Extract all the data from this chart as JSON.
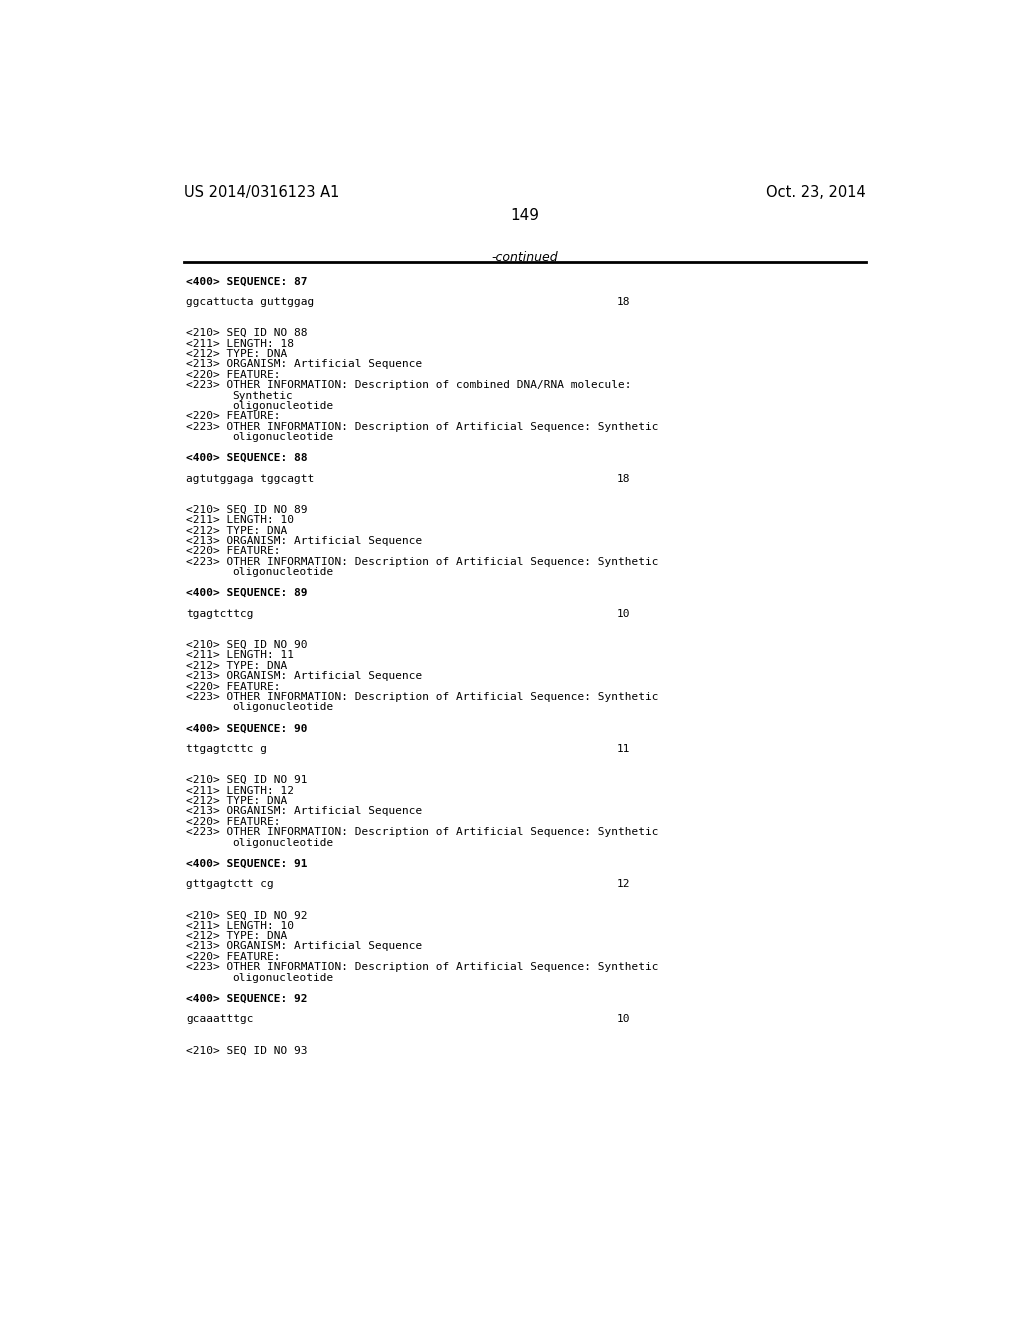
{
  "header_left": "US 2014/0316123 A1",
  "header_right": "Oct. 23, 2014",
  "page_number": "149",
  "continued_text": "-continued",
  "background_color": "#ffffff",
  "text_color": "#000000",
  "font_size_body": 8.0,
  "content_lines": [
    {
      "indent": 0,
      "text": "<400> SEQUENCE: 87",
      "bold": true,
      "right": ""
    },
    {
      "indent": 0,
      "text": "",
      "bold": false,
      "right": ""
    },
    {
      "indent": 0,
      "text": "ggcattucta guttggag",
      "bold": false,
      "right": "18"
    },
    {
      "indent": 0,
      "text": "",
      "bold": false,
      "right": ""
    },
    {
      "indent": 0,
      "text": "",
      "bold": false,
      "right": ""
    },
    {
      "indent": 0,
      "text": "<210> SEQ ID NO 88",
      "bold": false,
      "right": ""
    },
    {
      "indent": 0,
      "text": "<211> LENGTH: 18",
      "bold": false,
      "right": ""
    },
    {
      "indent": 0,
      "text": "<212> TYPE: DNA",
      "bold": false,
      "right": ""
    },
    {
      "indent": 0,
      "text": "<213> ORGANISM: Artificial Sequence",
      "bold": false,
      "right": ""
    },
    {
      "indent": 0,
      "text": "<220> FEATURE:",
      "bold": false,
      "right": ""
    },
    {
      "indent": 0,
      "text": "<223> OTHER INFORMATION: Description of combined DNA/RNA molecule:",
      "bold": false,
      "right": ""
    },
    {
      "indent": 1,
      "text": "Synthetic",
      "bold": false,
      "right": ""
    },
    {
      "indent": 1,
      "text": "oligonucleotide",
      "bold": false,
      "right": ""
    },
    {
      "indent": 0,
      "text": "<220> FEATURE:",
      "bold": false,
      "right": ""
    },
    {
      "indent": 0,
      "text": "<223> OTHER INFORMATION: Description of Artificial Sequence: Synthetic",
      "bold": false,
      "right": ""
    },
    {
      "indent": 1,
      "text": "oligonucleotide",
      "bold": false,
      "right": ""
    },
    {
      "indent": 0,
      "text": "",
      "bold": false,
      "right": ""
    },
    {
      "indent": 0,
      "text": "<400> SEQUENCE: 88",
      "bold": true,
      "right": ""
    },
    {
      "indent": 0,
      "text": "",
      "bold": false,
      "right": ""
    },
    {
      "indent": 0,
      "text": "agtutggaga tggcagtt",
      "bold": false,
      "right": "18"
    },
    {
      "indent": 0,
      "text": "",
      "bold": false,
      "right": ""
    },
    {
      "indent": 0,
      "text": "",
      "bold": false,
      "right": ""
    },
    {
      "indent": 0,
      "text": "<210> SEQ ID NO 89",
      "bold": false,
      "right": ""
    },
    {
      "indent": 0,
      "text": "<211> LENGTH: 10",
      "bold": false,
      "right": ""
    },
    {
      "indent": 0,
      "text": "<212> TYPE: DNA",
      "bold": false,
      "right": ""
    },
    {
      "indent": 0,
      "text": "<213> ORGANISM: Artificial Sequence",
      "bold": false,
      "right": ""
    },
    {
      "indent": 0,
      "text": "<220> FEATURE:",
      "bold": false,
      "right": ""
    },
    {
      "indent": 0,
      "text": "<223> OTHER INFORMATION: Description of Artificial Sequence: Synthetic",
      "bold": false,
      "right": ""
    },
    {
      "indent": 1,
      "text": "oligonucleotide",
      "bold": false,
      "right": ""
    },
    {
      "indent": 0,
      "text": "",
      "bold": false,
      "right": ""
    },
    {
      "indent": 0,
      "text": "<400> SEQUENCE: 89",
      "bold": true,
      "right": ""
    },
    {
      "indent": 0,
      "text": "",
      "bold": false,
      "right": ""
    },
    {
      "indent": 0,
      "text": "tgagtcttcg",
      "bold": false,
      "right": "10"
    },
    {
      "indent": 0,
      "text": "",
      "bold": false,
      "right": ""
    },
    {
      "indent": 0,
      "text": "",
      "bold": false,
      "right": ""
    },
    {
      "indent": 0,
      "text": "<210> SEQ ID NO 90",
      "bold": false,
      "right": ""
    },
    {
      "indent": 0,
      "text": "<211> LENGTH: 11",
      "bold": false,
      "right": ""
    },
    {
      "indent": 0,
      "text": "<212> TYPE: DNA",
      "bold": false,
      "right": ""
    },
    {
      "indent": 0,
      "text": "<213> ORGANISM: Artificial Sequence",
      "bold": false,
      "right": ""
    },
    {
      "indent": 0,
      "text": "<220> FEATURE:",
      "bold": false,
      "right": ""
    },
    {
      "indent": 0,
      "text": "<223> OTHER INFORMATION: Description of Artificial Sequence: Synthetic",
      "bold": false,
      "right": ""
    },
    {
      "indent": 1,
      "text": "oligonucleotide",
      "bold": false,
      "right": ""
    },
    {
      "indent": 0,
      "text": "",
      "bold": false,
      "right": ""
    },
    {
      "indent": 0,
      "text": "<400> SEQUENCE: 90",
      "bold": true,
      "right": ""
    },
    {
      "indent": 0,
      "text": "",
      "bold": false,
      "right": ""
    },
    {
      "indent": 0,
      "text": "ttgagtcttc g",
      "bold": false,
      "right": "11"
    },
    {
      "indent": 0,
      "text": "",
      "bold": false,
      "right": ""
    },
    {
      "indent": 0,
      "text": "",
      "bold": false,
      "right": ""
    },
    {
      "indent": 0,
      "text": "<210> SEQ ID NO 91",
      "bold": false,
      "right": ""
    },
    {
      "indent": 0,
      "text": "<211> LENGTH: 12",
      "bold": false,
      "right": ""
    },
    {
      "indent": 0,
      "text": "<212> TYPE: DNA",
      "bold": false,
      "right": ""
    },
    {
      "indent": 0,
      "text": "<213> ORGANISM: Artificial Sequence",
      "bold": false,
      "right": ""
    },
    {
      "indent": 0,
      "text": "<220> FEATURE:",
      "bold": false,
      "right": ""
    },
    {
      "indent": 0,
      "text": "<223> OTHER INFORMATION: Description of Artificial Sequence: Synthetic",
      "bold": false,
      "right": ""
    },
    {
      "indent": 1,
      "text": "oligonucleotide",
      "bold": false,
      "right": ""
    },
    {
      "indent": 0,
      "text": "",
      "bold": false,
      "right": ""
    },
    {
      "indent": 0,
      "text": "<400> SEQUENCE: 91",
      "bold": true,
      "right": ""
    },
    {
      "indent": 0,
      "text": "",
      "bold": false,
      "right": ""
    },
    {
      "indent": 0,
      "text": "gttgagtctt cg",
      "bold": false,
      "right": "12"
    },
    {
      "indent": 0,
      "text": "",
      "bold": false,
      "right": ""
    },
    {
      "indent": 0,
      "text": "",
      "bold": false,
      "right": ""
    },
    {
      "indent": 0,
      "text": "<210> SEQ ID NO 92",
      "bold": false,
      "right": ""
    },
    {
      "indent": 0,
      "text": "<211> LENGTH: 10",
      "bold": false,
      "right": ""
    },
    {
      "indent": 0,
      "text": "<212> TYPE: DNA",
      "bold": false,
      "right": ""
    },
    {
      "indent": 0,
      "text": "<213> ORGANISM: Artificial Sequence",
      "bold": false,
      "right": ""
    },
    {
      "indent": 0,
      "text": "<220> FEATURE:",
      "bold": false,
      "right": ""
    },
    {
      "indent": 0,
      "text": "<223> OTHER INFORMATION: Description of Artificial Sequence: Synthetic",
      "bold": false,
      "right": ""
    },
    {
      "indent": 1,
      "text": "oligonucleotide",
      "bold": false,
      "right": ""
    },
    {
      "indent": 0,
      "text": "",
      "bold": false,
      "right": ""
    },
    {
      "indent": 0,
      "text": "<400> SEQUENCE: 92",
      "bold": true,
      "right": ""
    },
    {
      "indent": 0,
      "text": "",
      "bold": false,
      "right": ""
    },
    {
      "indent": 0,
      "text": "gcaaatttgc",
      "bold": false,
      "right": "10"
    },
    {
      "indent": 0,
      "text": "",
      "bold": false,
      "right": ""
    },
    {
      "indent": 0,
      "text": "",
      "bold": false,
      "right": ""
    },
    {
      "indent": 0,
      "text": "<210> SEQ ID NO 93",
      "bold": false,
      "right": ""
    }
  ]
}
